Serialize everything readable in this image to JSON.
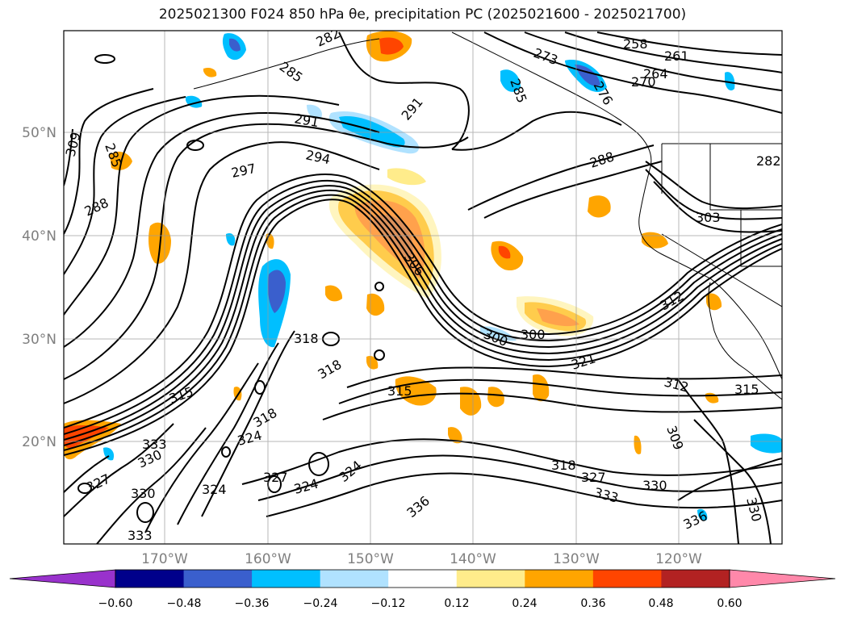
{
  "title": "2025021300 F024 850 hPa θe, precipitation PC (2025021600 - 2025021700)",
  "map": {
    "lat_ticks": [
      "50°N",
      "40°N",
      "30°N",
      "20°N"
    ],
    "lon_ticks": [
      "170°W",
      "160°W",
      "150°W",
      "140°W",
      "130°W",
      "120°W"
    ],
    "contour_labels": [
      "258",
      "261",
      "264",
      "270",
      "273",
      "276",
      "282",
      "282",
      "285",
      "285",
      "285",
      "288",
      "288",
      "291",
      "291",
      "294",
      "297",
      "300",
      "300",
      "303",
      "306",
      "309",
      "309",
      "312",
      "312",
      "315",
      "315",
      "315",
      "318",
      "318",
      "318",
      "318",
      "321",
      "324",
      "324",
      "324",
      "324",
      "327",
      "327",
      "327",
      "330",
      "330",
      "330",
      "330",
      "333",
      "333",
      "333",
      "336",
      "336"
    ]
  },
  "colorbar": {
    "ticks": [
      "−0.60",
      "−0.48",
      "−0.36",
      "−0.24",
      "−0.12",
      "0.12",
      "0.24",
      "0.36",
      "0.48",
      "0.60"
    ],
    "colors": [
      "#9932cc",
      "#00008b",
      "#3a5fcd",
      "#00bfff",
      "#b0e2ff",
      "#ffffff",
      "#ffec8b",
      "#ffa500",
      "#ff4500",
      "#b22222",
      "#ff88aa"
    ]
  }
}
